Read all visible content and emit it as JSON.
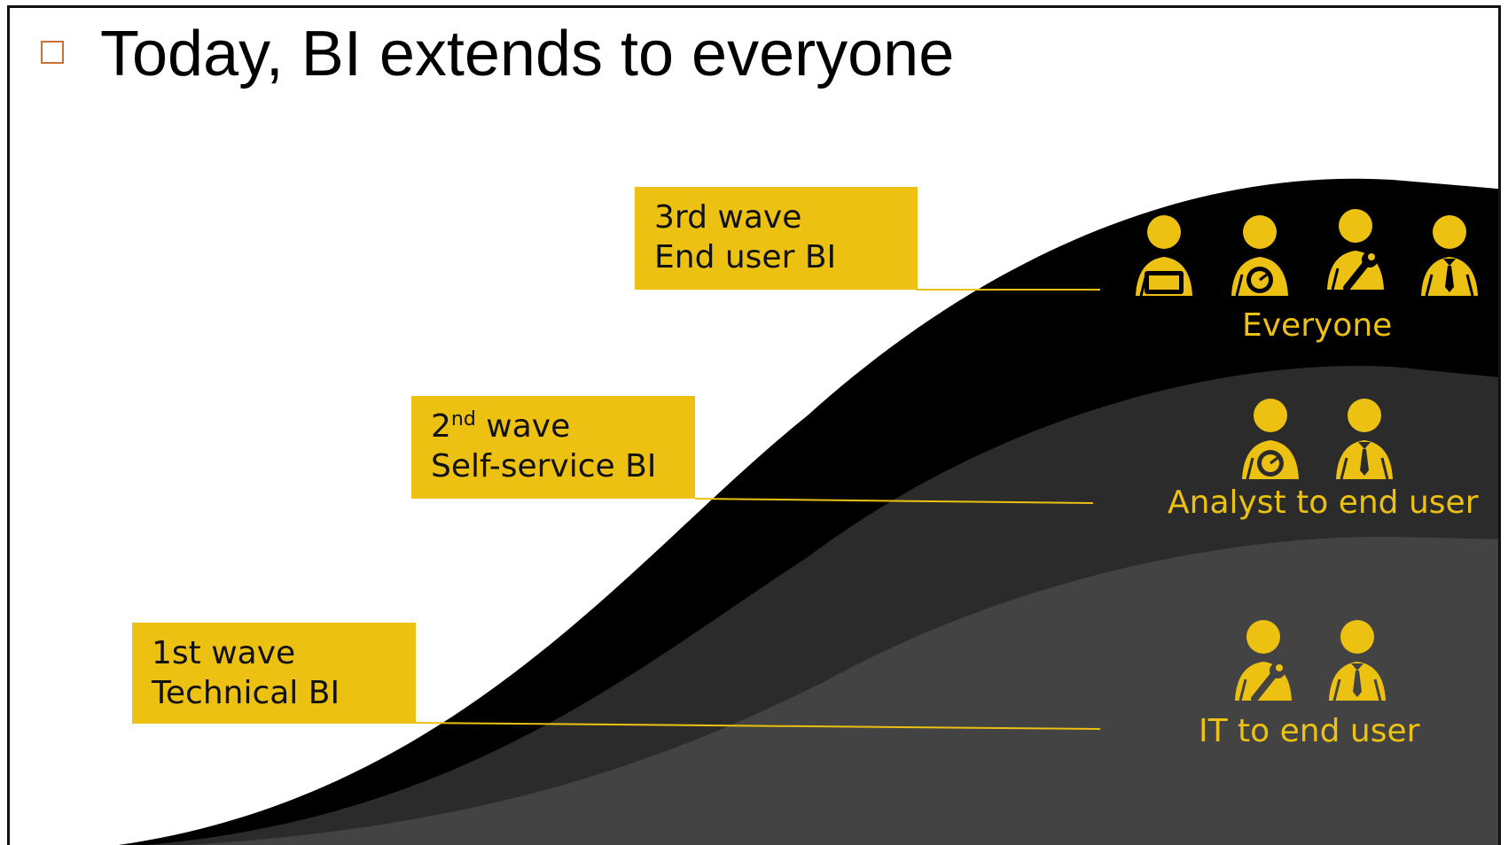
{
  "slide": {
    "title": "Today, BI extends to everyone"
  },
  "waves": [
    {
      "heading_num": "3rd",
      "heading_sup": "",
      "heading_word": "wave",
      "subtitle": "End user BI",
      "audience": "Everyone",
      "icons": [
        "person-tablet-icon",
        "person-gauge-icon",
        "person-wrench-icon",
        "person-tie-icon"
      ]
    },
    {
      "heading_num": "2",
      "heading_sup": "nd",
      "heading_word": "wave",
      "subtitle": "Self-service BI",
      "audience": "Analyst to end user",
      "icons": [
        "person-gauge-icon",
        "person-tie-icon"
      ]
    },
    {
      "heading_num": "1st",
      "heading_sup": "",
      "heading_word": "wave",
      "subtitle": "Technical BI",
      "audience": "IT to end user",
      "icons": [
        "person-wrench-icon",
        "person-tie-icon"
      ]
    }
  ],
  "colors": {
    "accent": "#ecc111",
    "wave3": "#000000",
    "wave2": "#2b2b2b",
    "wave1": "#434343",
    "bullet": "#c8703a"
  }
}
